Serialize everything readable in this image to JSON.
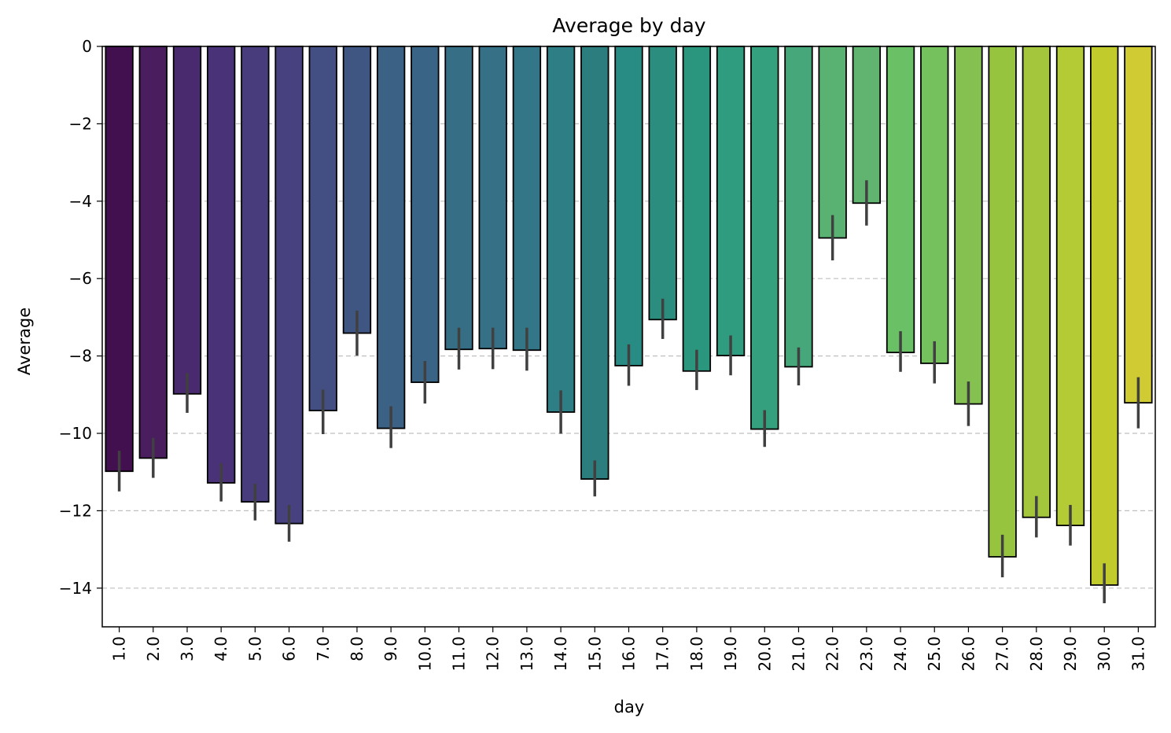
{
  "chart_data": {
    "type": "bar",
    "title": "Average by day",
    "xlabel": "day",
    "ylabel": "Average",
    "ylim": [
      -15,
      0
    ],
    "yticks": [
      0,
      -2,
      -4,
      -6,
      -8,
      -10,
      -12,
      -14
    ],
    "ytick_labels": [
      "0",
      "−2",
      "−4",
      "−6",
      "−8",
      "−10",
      "−12",
      "−14"
    ],
    "grid": "y-dashed",
    "categories": [
      "1.0",
      "2.0",
      "3.0",
      "4.0",
      "5.0",
      "6.0",
      "7.0",
      "8.0",
      "9.0",
      "10.0",
      "11.0",
      "12.0",
      "13.0",
      "14.0",
      "15.0",
      "16.0",
      "17.0",
      "18.0",
      "19.0",
      "20.0",
      "21.0",
      "22.0",
      "23.0",
      "24.0",
      "25.0",
      "26.0",
      "27.0",
      "28.0",
      "29.0",
      "30.0",
      "31.0"
    ],
    "values": [
      -10.98,
      -10.64,
      -8.98,
      -11.28,
      -11.77,
      -12.33,
      -9.41,
      -7.41,
      -9.87,
      -8.68,
      -7.83,
      -7.81,
      -7.85,
      -9.45,
      -11.18,
      -8.25,
      -7.06,
      -8.39,
      -7.99,
      -9.89,
      -8.28,
      -4.95,
      -4.05,
      -7.91,
      -8.19,
      -9.24,
      -13.19,
      -12.17,
      -12.38,
      -13.92,
      -9.21
    ],
    "error_low": [
      -11.5,
      -11.15,
      -9.47,
      -11.76,
      -12.25,
      -12.8,
      -10.02,
      -7.99,
      -10.38,
      -9.23,
      -8.35,
      -8.34,
      -8.38,
      -10.01,
      -11.63,
      -8.77,
      -7.56,
      -8.88,
      -8.5,
      -10.35,
      -8.76,
      -5.53,
      -4.63,
      -8.41,
      -8.71,
      -9.81,
      -13.72,
      -12.69,
      -12.9,
      -14.39,
      -9.87
    ],
    "error_high": [
      -10.45,
      -10.12,
      -8.44,
      -10.77,
      -11.3,
      -11.85,
      -8.87,
      -6.83,
      -9.3,
      -8.13,
      -7.27,
      -7.27,
      -7.27,
      -8.89,
      -10.7,
      -7.7,
      -6.52,
      -7.84,
      -7.47,
      -9.4,
      -7.78,
      -4.36,
      -3.46,
      -7.36,
      -7.62,
      -8.66,
      -12.62,
      -11.62,
      -11.85,
      -13.36,
      -8.55
    ],
    "colors": [
      "#43104f",
      "#4a1e5e",
      "#4a2a6e",
      "#4a3278",
      "#483c7c",
      "#47427f",
      "#434f82",
      "#3f5683",
      "#3b6184",
      "#3a6485",
      "#366e86",
      "#357087",
      "#337687",
      "#2e7f85",
      "#2c7d7d",
      "#288c84",
      "#2a8d7e",
      "#2a967d",
      "#2f9b7f",
      "#35a07e",
      "#46a77a",
      "#59b272",
      "#60b470",
      "#6ac064",
      "#74c15e",
      "#85c151",
      "#96c43f",
      "#a4c63c",
      "#b4cb36",
      "#c2cb2c",
      "#d1cb33"
    ],
    "bar_edge_color": "#000000",
    "error_color": "#404040"
  }
}
